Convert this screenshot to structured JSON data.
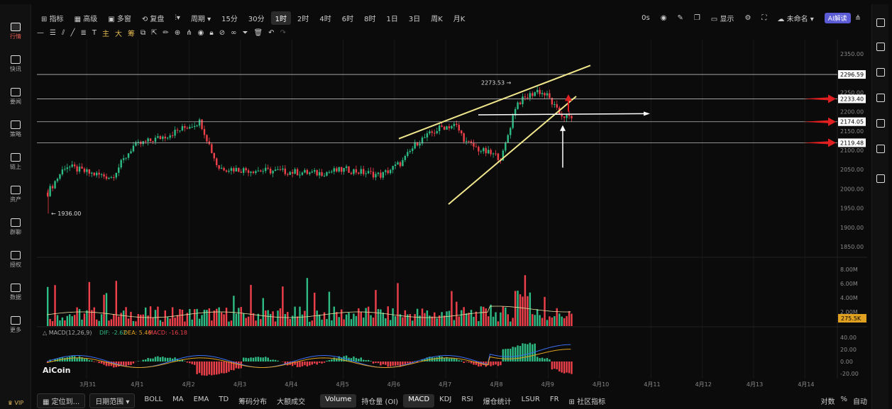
{
  "sidebar": {
    "items": [
      {
        "label": "行情",
        "icon": "chart-bar-icon",
        "active": true
      },
      {
        "label": "快讯",
        "icon": "news-flash-icon"
      },
      {
        "label": "要闻",
        "icon": "document-icon"
      },
      {
        "label": "策略",
        "icon": "robot-icon"
      },
      {
        "label": "链上",
        "icon": "chain-icon"
      },
      {
        "label": "资产",
        "icon": "wallet-icon"
      },
      {
        "label": "群聊",
        "icon": "chat-icon"
      },
      {
        "label": "授权",
        "icon": "key-icon"
      },
      {
        "label": "数据",
        "icon": "data-icon"
      },
      {
        "label": "更多",
        "icon": "grid-icon"
      }
    ],
    "vip": "VIP"
  },
  "toolbar": {
    "indicators": "指标",
    "advanced": "高级",
    "multi": "多窗",
    "replay": "复盘",
    "period": "周期",
    "timeframes": [
      "15分",
      "30分",
      "1时",
      "2时",
      "4时",
      "6时",
      "8时",
      "1日",
      "3日",
      "周K",
      "月K"
    ],
    "selected_timeframe": "1时",
    "latency": "0s",
    "display": "显示",
    "unnamed": "未命名",
    "ai": "AI解读"
  },
  "drawbar": {
    "main": "主",
    "big": "大",
    "chip": "筹"
  },
  "bottombar": {
    "locate": "定位到...",
    "date_range": "日期范围",
    "tabs": [
      "BOLL",
      "MA",
      "EMA",
      "TD",
      "筹码分布",
      "大额成交"
    ],
    "sub_tabs": [
      "Volume",
      "持仓量 (OI)",
      "MACD",
      "KDJ",
      "RSI",
      "爆仓统计",
      "LSUR",
      "FR"
    ],
    "community": "社区指标",
    "log": "对数",
    "percent": "%",
    "auto": "自动"
  },
  "chart_data": {
    "type": "candlestick",
    "price_axis": [
      2350.0,
      2300.0,
      2250.0,
      2200.0,
      2150.0,
      2100.0,
      2050.0,
      2000.0,
      1950.0,
      1900.0,
      1850.0
    ],
    "x_ticks": [
      "3月31",
      "4月1",
      "4月2",
      "4月3",
      "4月4",
      "4月5",
      "4月6",
      "4月7",
      "4月8",
      "4月9",
      "4月10",
      "4月11",
      "4月12",
      "4月13",
      "4月14"
    ],
    "low_label": "1936.00",
    "high_label": "2273.53",
    "levels": [
      2296.59,
      2233.4,
      2174.05,
      2119.48
    ],
    "volume_axis": [
      "8.00M",
      "6.00M",
      "4.00M",
      "2.00M"
    ],
    "volume_last": "275.5K",
    "macd_label": "MACD(12,26,9)",
    "macd_dif": "DIF: -2.62",
    "macd_dea": "DEA: 5.46",
    "macd_val": "MACD: -16.18",
    "macd_axis": [
      "40.00",
      "20.00",
      "0.00",
      "-20.00"
    ],
    "watermark": "AiCoin",
    "colors": {
      "up": "#2dbd85",
      "down": "#f0404a",
      "trend": "#f0e68c",
      "level": "#ffffff"
    }
  }
}
